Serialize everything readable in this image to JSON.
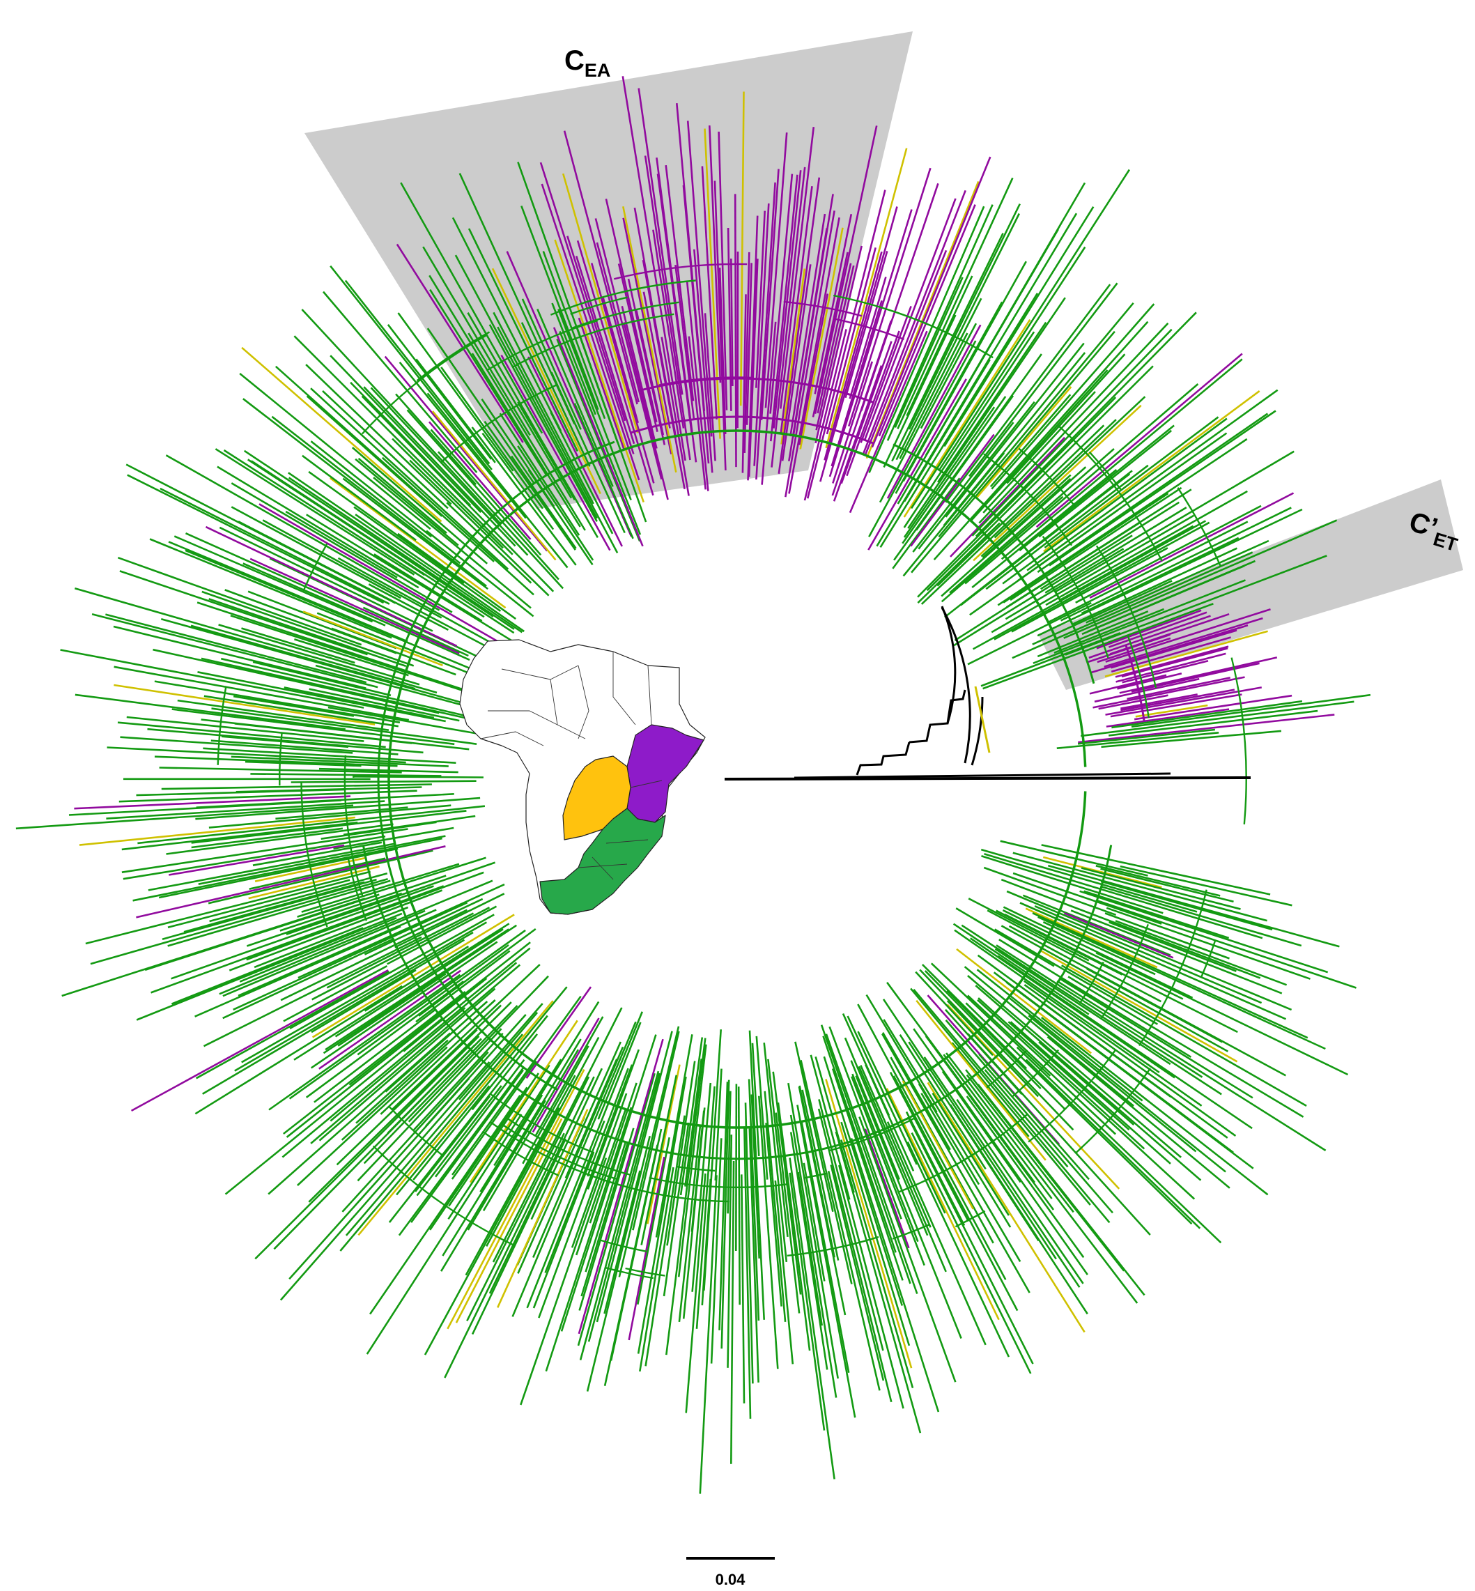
{
  "figure": {
    "type": "circular phylogenetic tree",
    "colors": {
      "southern_africa": "#139a12",
      "east_africa": "#910a9e",
      "central_africa": "#cfc100",
      "reference": "#000000",
      "highlight": "#cccccc"
    },
    "clades": [
      {
        "id": "cea",
        "main": "C",
        "sub": "EA"
      },
      {
        "id": "cet",
        "main": "C’",
        "sub": "ET"
      }
    ],
    "scale_bar": {
      "label": "0.04",
      "value": 0.04
    },
    "map": {
      "name": "Africa",
      "colors": {
        "east": "#8e1bc9",
        "central": "#ffc20e",
        "south": "#27a84a"
      }
    }
  }
}
